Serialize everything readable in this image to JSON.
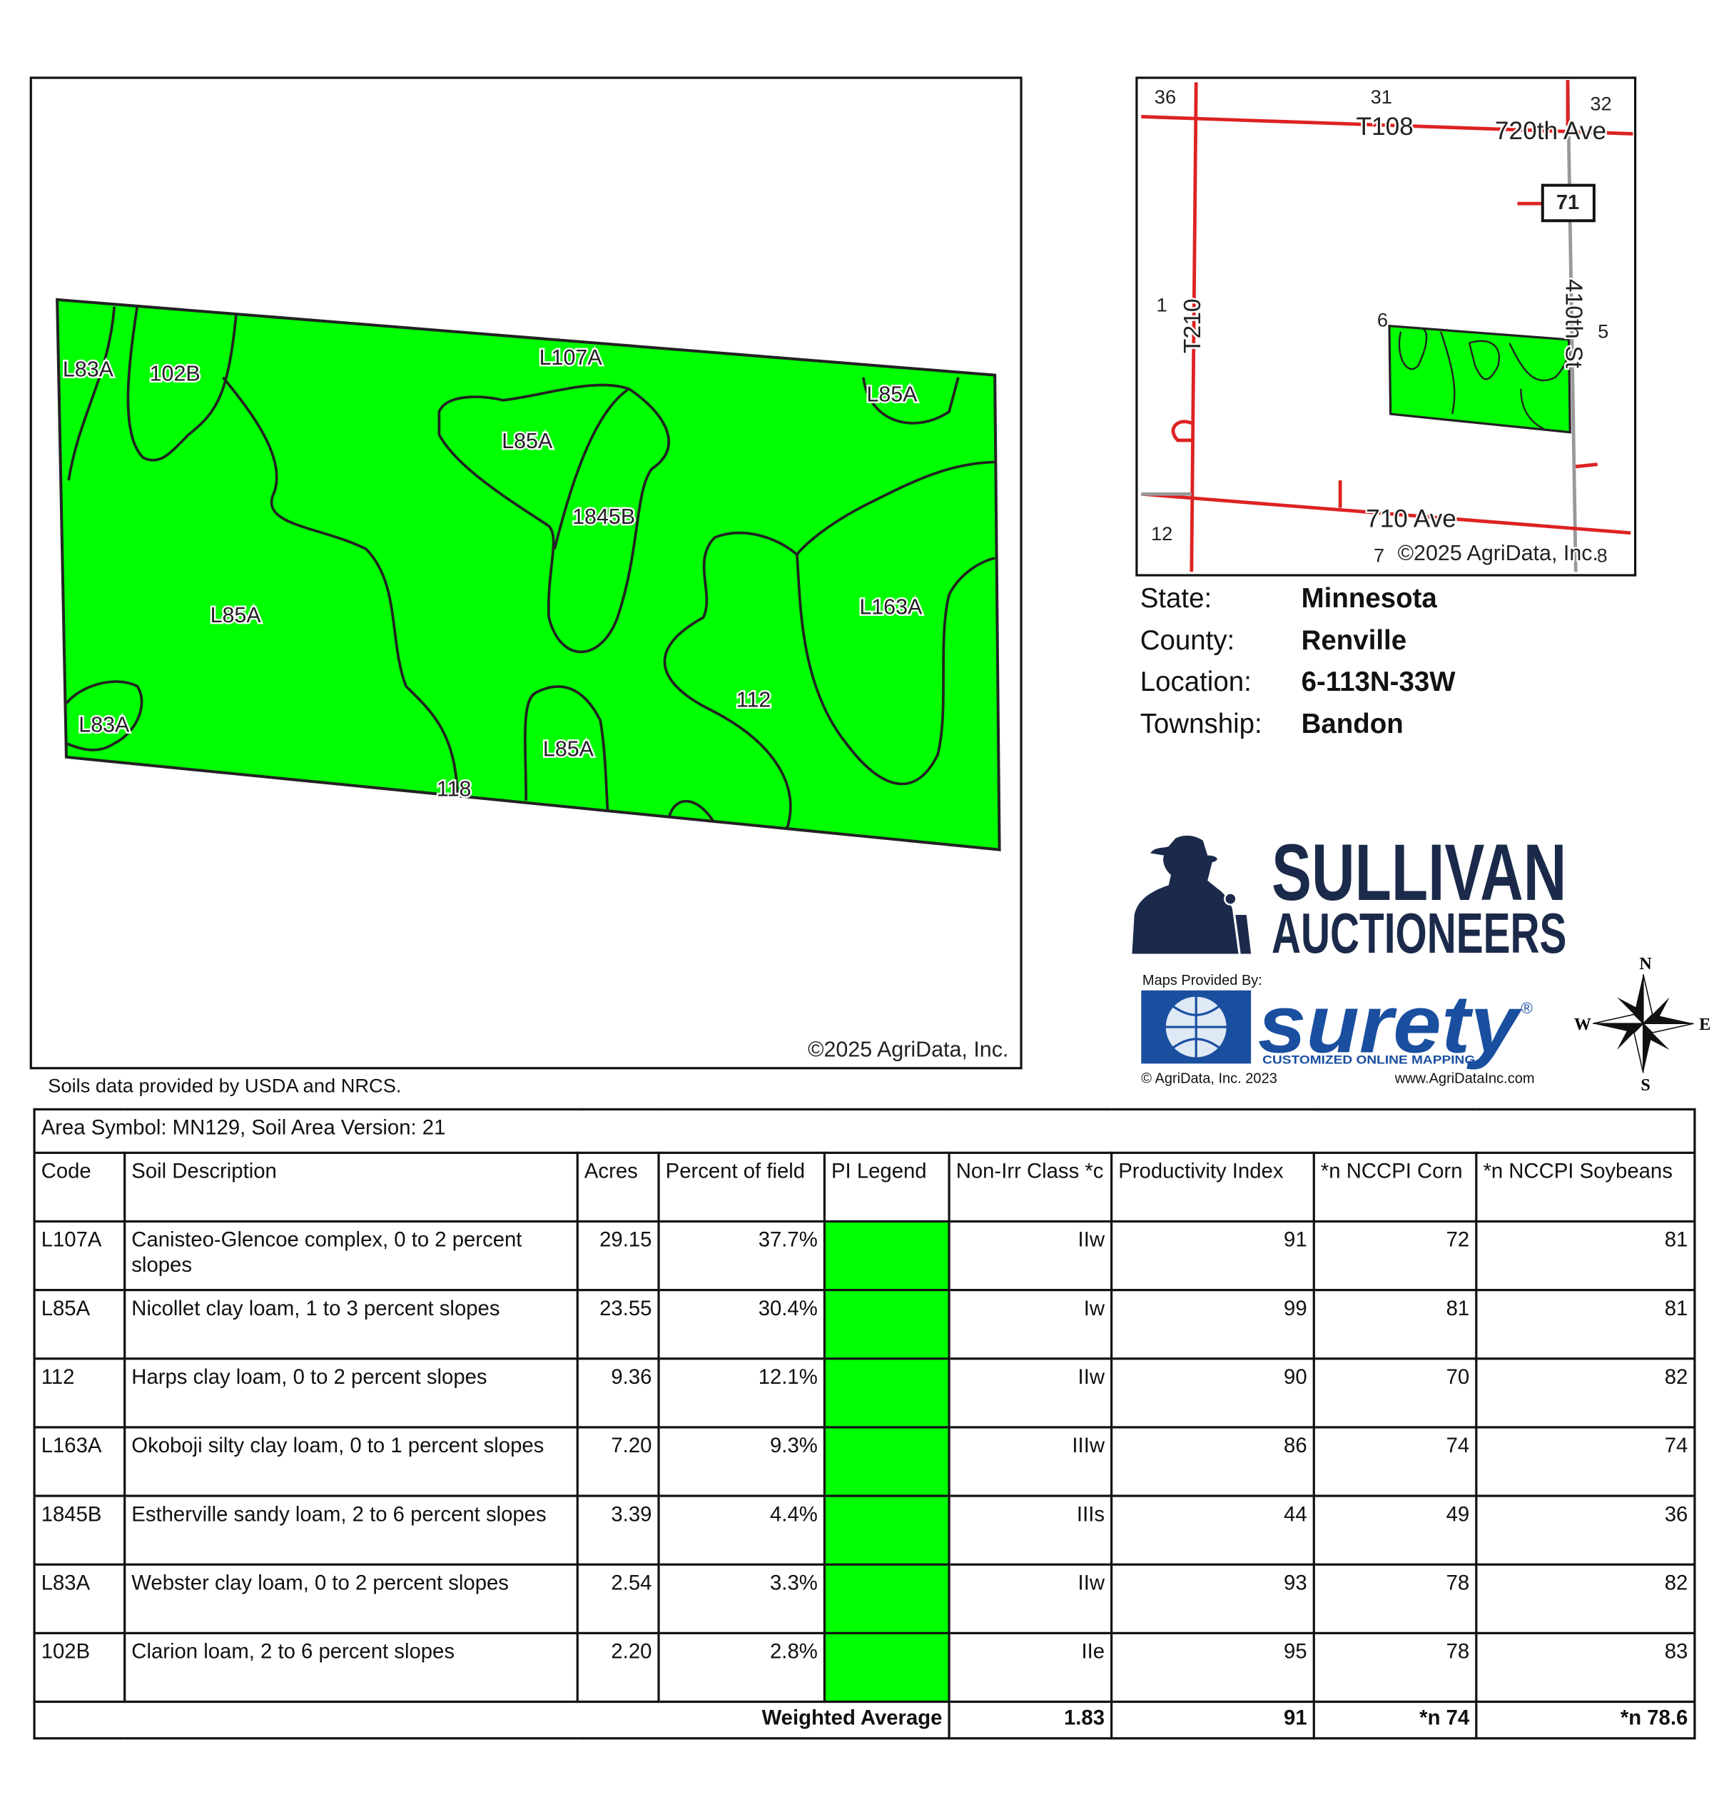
{
  "soil_map": {
    "labels": [
      "L83A",
      "102B",
      "L107A",
      "L85A",
      "L85A",
      "1845B",
      "L85A",
      "L163A",
      "L83A",
      "112",
      "L85A",
      "118"
    ],
    "copyright": "©2025 AgriData, Inc."
  },
  "locator_map": {
    "labels": [
      "36",
      "31",
      "32",
      "T108",
      "720th Ave",
      "71",
      "1",
      "T210",
      "6",
      "5",
      "410th St",
      "12",
      "710 Ave",
      "7",
      "8"
    ],
    "copyright": "©2025 AgriData, Inc."
  },
  "location": [
    {
      "label": "State:",
      "value": "Minnesota"
    },
    {
      "label": "County:",
      "value": "Renville"
    },
    {
      "label": "Location:",
      "value": "6-113N-33W"
    },
    {
      "label": "Township:",
      "value": "Bandon"
    }
  ],
  "branding": {
    "company_line1": "SULLIVAN",
    "company_line2": "AUCTIONEERS",
    "maps_provided_by": "Maps Provided By:",
    "surety": "surety",
    "registered": "®",
    "tagline": "CUSTOMIZED ONLINE MAPPING",
    "agridata": "© AgriData, Inc. 2023",
    "website": "www.AgriDataInc.com"
  },
  "compass": [
    "N",
    "E",
    "S",
    "W"
  ],
  "source_note": "Soils data provided by USDA and NRCS.",
  "table": {
    "caption": "Area Symbol: MN129, Soil Area Version: 21",
    "headers": [
      "Code",
      "Soil Description",
      "Acres",
      "Percent of field",
      "PI Legend",
      "Non-Irr Class *c",
      "Productivity Index",
      "*n NCCPI Corn",
      "*n NCCPI Soybeans"
    ],
    "rows": [
      [
        "L107A",
        "Canisteo-Glencoe complex, 0 to 2 percent slopes",
        "29.15",
        "37.7%",
        "IIw",
        "91",
        "72",
        "81"
      ],
      [
        "L85A",
        "Nicollet clay loam, 1 to 3 percent slopes",
        "23.55",
        "30.4%",
        "Iw",
        "99",
        "81",
        "81"
      ],
      [
        "112",
        "Harps clay loam, 0 to 2 percent slopes",
        "9.36",
        "12.1%",
        "IIw",
        "90",
        "70",
        "82"
      ],
      [
        "L163A",
        "Okoboji silty clay loam, 0 to 1 percent slopes",
        "7.20",
        "9.3%",
        "IIIw",
        "86",
        "74",
        "74"
      ],
      [
        "1845B",
        "Estherville sandy loam, 2 to 6 percent slopes",
        "3.39",
        "4.4%",
        "IIIs",
        "44",
        "49",
        "36"
      ],
      [
        "L83A",
        "Webster clay loam, 0 to 2 percent slopes",
        "2.54",
        "3.3%",
        "IIw",
        "93",
        "78",
        "82"
      ],
      [
        "102B",
        "Clarion loam, 2 to 6 percent slopes",
        "2.20",
        "2.8%",
        "IIe",
        "95",
        "78",
        "83"
      ]
    ],
    "footer": {
      "label": "Weighted Average",
      "values": [
        "1.83",
        "91",
        "*n 74",
        "*n 78.6"
      ]
    }
  }
}
